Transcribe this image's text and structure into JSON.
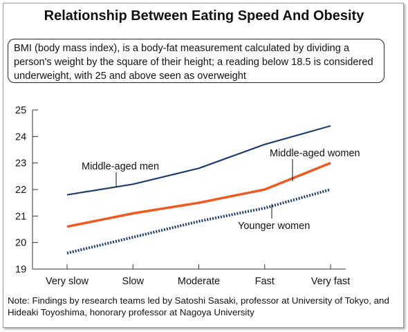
{
  "title": "Relationship Between Eating Speed And Obesity",
  "info_text": "BMI (body mass index), is a body-fat measurement calculated by dividing a person's weight by the square of their height; a reading below 18.5 is considered underweight, with 25 and above seen as overweight",
  "note": "Note: Findings by research teams led by Satoshi Sasaki, professor at University of Tokyo, and Hideaki Toyoshima, honorary professor at Nagoya University",
  "chart_data": {
    "type": "line",
    "title": "Relationship Between Eating Speed And Obesity",
    "xlabel": "",
    "ylabel": "",
    "categories": [
      "Very slow",
      "Slow",
      "Moderate",
      "Fast",
      "Very fast"
    ],
    "ylim": [
      19,
      25
    ],
    "yticks": [
      19,
      20,
      21,
      22,
      23,
      24,
      25
    ],
    "grid": false,
    "series": [
      {
        "name": "Middle-aged men",
        "values": [
          21.8,
          22.2,
          22.8,
          23.7,
          24.4
        ],
        "color": "#1f3d6b",
        "style": "solid"
      },
      {
        "name": "Middle-aged women",
        "values": [
          20.6,
          21.1,
          21.5,
          22.0,
          23.0
        ],
        "color": "#f2581f",
        "style": "solid"
      },
      {
        "name": "Younger women",
        "values": [
          19.6,
          20.2,
          20.8,
          21.3,
          22.0
        ],
        "color": "#1f3d6b",
        "style": "dotted"
      }
    ]
  }
}
